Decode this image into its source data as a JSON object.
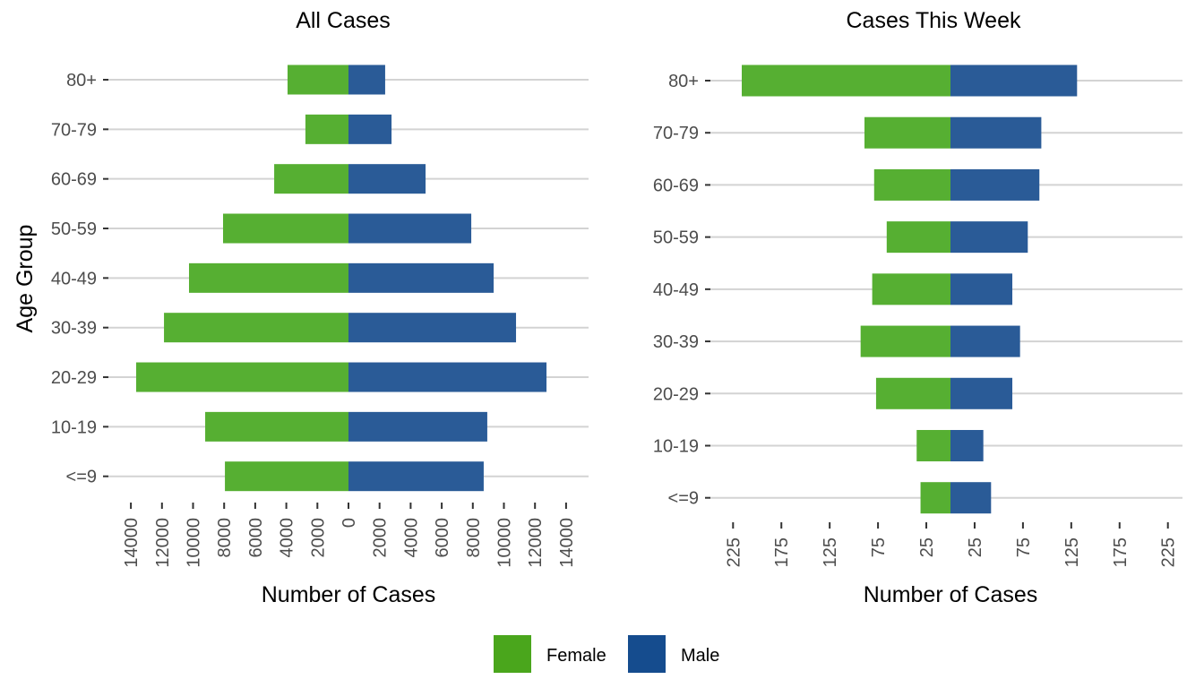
{
  "chart_data": [
    {
      "type": "bar",
      "orientation": "horizontal-pyramid",
      "title": "All Cases",
      "xlabel": "Number of Cases",
      "ylabel": "Age Group",
      "categories": [
        "<=9",
        "10-19",
        "20-29",
        "30-39",
        "40-49",
        "50-59",
        "60-69",
        "70-79",
        "80+"
      ],
      "series": [
        {
          "name": "Female",
          "values": [
            7950,
            9220,
            13660,
            11870,
            10260,
            8070,
            4780,
            2770,
            3920
          ]
        },
        {
          "name": "Male",
          "values": [
            8700,
            8930,
            12740,
            10780,
            9340,
            7900,
            4960,
            2770,
            2360
          ]
        }
      ],
      "xlim": [
        -14000,
        14000
      ],
      "x_ticks": [
        -14000,
        -12000,
        -10000,
        -8000,
        -6000,
        -4000,
        -2000,
        0,
        2000,
        4000,
        6000,
        8000,
        10000,
        12000,
        14000
      ],
      "x_tick_labels": [
        "14000",
        "12000",
        "10000",
        "8000",
        "6000",
        "4000",
        "2000",
        "0",
        "2000",
        "4000",
        "6000",
        "8000",
        "10000",
        "12000",
        "14000"
      ],
      "grid": "horizontal major"
    },
    {
      "type": "bar",
      "orientation": "horizontal-pyramid",
      "title": "Cases This Week",
      "xlabel": "Number of Cases",
      "ylabel": "",
      "categories": [
        "<=9",
        "10-19",
        "20-29",
        "30-39",
        "40-49",
        "50-59",
        "60-69",
        "70-79",
        "80+"
      ],
      "series": [
        {
          "name": "Female",
          "values": [
            31,
            35,
            77,
            93,
            81,
            66,
            79,
            89,
            216
          ]
        },
        {
          "name": "Male",
          "values": [
            42,
            34,
            64,
            72,
            64,
            80,
            92,
            94,
            131
          ]
        }
      ],
      "xlim": [
        -245,
        245
      ],
      "x_ticks": [
        -225,
        -175,
        -125,
        -75,
        -25,
        25,
        75,
        125,
        175,
        225
      ],
      "x_tick_labels": [
        "225",
        "175",
        "125",
        "75",
        "25",
        "25",
        "75",
        "125",
        "175",
        "225"
      ],
      "grid": "horizontal major"
    }
  ],
  "legend": {
    "placement": "bottom",
    "items": [
      {
        "label": "Female",
        "color": "#4aa61c"
      },
      {
        "label": "Male",
        "color": "#154c8e"
      }
    ]
  },
  "colors": {
    "female_bar": "#56af32",
    "male_bar": "#2a5b97"
  }
}
